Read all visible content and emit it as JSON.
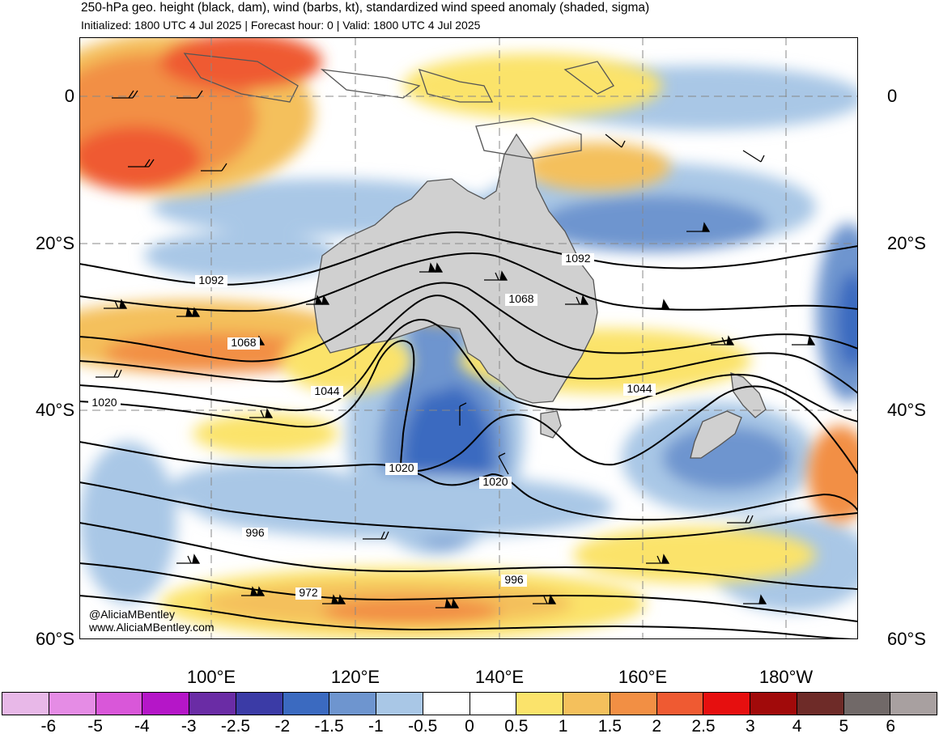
{
  "header": {
    "title": "250-hPa geo. height (black, dam), wind (barbs, kt), standardized wind speed anomaly (shaded, sigma)",
    "subtitle": "Initialized: 1800 UTC 4 Jul 2025 | Forecast hour: 0 | Valid: 1800 UTC 4 Jul 2025"
  },
  "map": {
    "latitude_labels": [
      "0",
      "20°S",
      "40°S",
      "60°S"
    ],
    "longitude_labels": [
      "100°E",
      "120°E",
      "140°E",
      "160°E",
      "180°W"
    ],
    "contour_labels": [
      "1092",
      "1092",
      "1068",
      "1068",
      "1044",
      "1044",
      "1020",
      "1020",
      "1020",
      "996",
      "996",
      "972"
    ],
    "contour_interval_dam": 12,
    "land_color": "#d0d0d0",
    "contour_color": "#000000",
    "barb_color": "#000000",
    "features": {
      "jet_streak_core": "south of Australia near 55°S, ~2.5 sigma",
      "trough": "deep trough between 130°E and 140°E",
      "ridge": "ridge over central Australia"
    }
  },
  "credits": {
    "handle": "@AliciaMBentley",
    "website": "www.AliciaMBentley.com"
  },
  "colorbar": {
    "labels": [
      "-6",
      "-5",
      "-4",
      "-3",
      "-2.5",
      "-2",
      "-1.5",
      "-1",
      "-0.5",
      "0",
      "0.5",
      "1",
      "1.5",
      "2",
      "2.5",
      "3",
      "4",
      "5",
      "6"
    ],
    "colors": [
      "#e8b8e8",
      "#e58ce5",
      "#d957d9",
      "#b516c8",
      "#6a2ca5",
      "#3b3ba6",
      "#3b6ac0",
      "#6e95cf",
      "#a9c7e6",
      "#ffffff",
      "#ffffff",
      "#fbe36b",
      "#f4c05c",
      "#f28f44",
      "#ef5a32",
      "#e60f0f",
      "#a10a0a",
      "#6e2b28",
      "#716968",
      "#a8a0a0"
    ]
  }
}
